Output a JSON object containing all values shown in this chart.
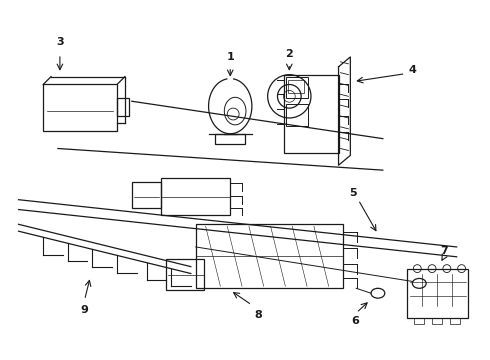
{
  "background_color": "#ffffff",
  "line_color": "#1a1a1a",
  "fig_width": 4.9,
  "fig_height": 3.6
}
